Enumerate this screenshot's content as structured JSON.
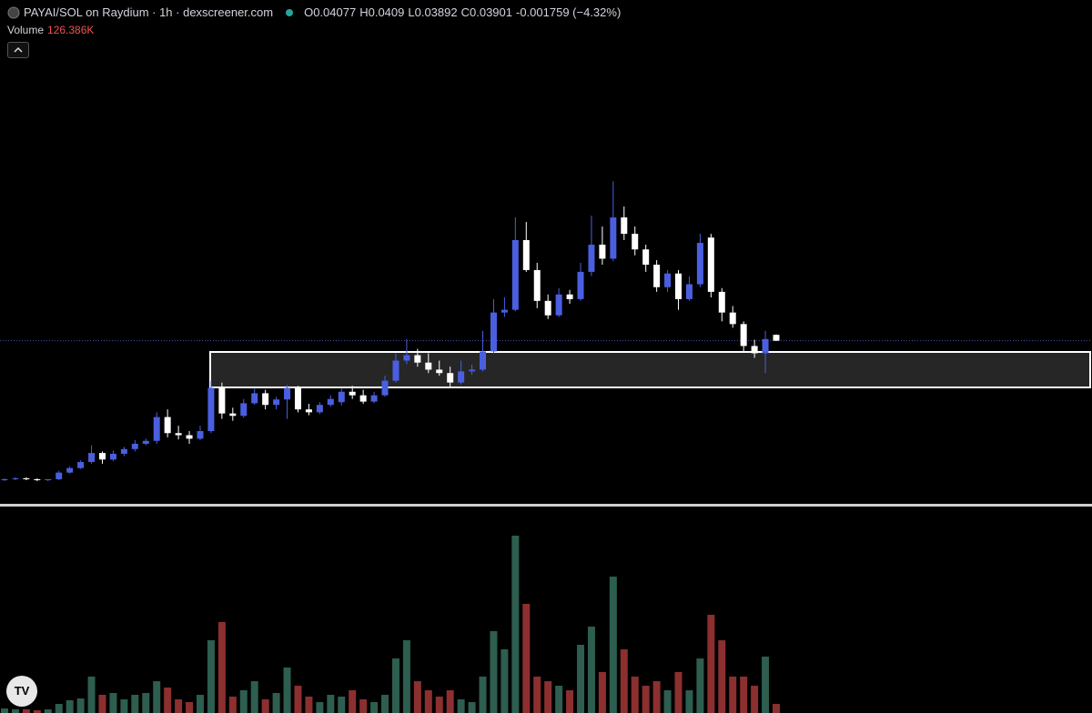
{
  "chart_data": {
    "type": "candlestick",
    "title": "PAYAI/SOL on Raydium · 1h · dexscreener.com",
    "ohlc_labels": [
      "O",
      "H",
      "L",
      "C"
    ],
    "change_label": "-0.001759 (−4.32%)",
    "log_scale": true,
    "ylim": [
      0.01155,
      0.503
    ],
    "up_color": "#4a5fe0",
    "down_color": "#ffffff",
    "open": [
      0.0137,
      0.0138,
      0.0139,
      0.0138,
      0.0137,
      0.0138,
      0.0145,
      0.015,
      0.0157,
      0.0168,
      0.016,
      0.0167,
      0.0173,
      0.018,
      0.0184,
      0.022,
      0.0195,
      0.0192,
      0.0187,
      0.0198,
      0.0274,
      0.0226,
      0.0222,
      0.0244,
      0.0263,
      0.0241,
      0.0251,
      0.0274,
      0.0233,
      0.0228,
      0.0241,
      0.0246,
      0.0266,
      0.0259,
      0.0247,
      0.0259,
      0.0289,
      0.0336,
      0.035,
      0.0331,
      0.0314,
      0.0306,
      0.0285,
      0.031,
      0.0314,
      0.036,
      0.0482,
      0.0492,
      0.083,
      0.0663,
      0.0526,
      0.0472,
      0.0552,
      0.0533,
      0.0654,
      0.0802,
      0.0722,
      0.0984,
      0.087,
      0.0774,
      0.069,
      0.0583,
      0.0646,
      0.0533,
      0.0596,
      0.0846,
      0.0563,
      0.0482,
      0.0442,
      0.0375,
      0.0355,
      0.04077
    ],
    "high": [
      0.0139,
      0.014,
      0.014,
      0.0139,
      0.0138,
      0.0147,
      0.0152,
      0.0159,
      0.0178,
      0.017,
      0.0171,
      0.0176,
      0.0185,
      0.0187,
      0.0228,
      0.0233,
      0.0206,
      0.0198,
      0.0206,
      0.0289,
      0.0285,
      0.0236,
      0.0252,
      0.0274,
      0.027,
      0.0256,
      0.028,
      0.0278,
      0.0243,
      0.0246,
      0.0259,
      0.0274,
      0.0278,
      0.027,
      0.0266,
      0.03,
      0.0355,
      0.0395,
      0.0367,
      0.0355,
      0.0336,
      0.0321,
      0.0336,
      0.0326,
      0.042,
      0.0533,
      0.054,
      0.0984,
      0.0951,
      0.07,
      0.0552,
      0.0579,
      0.0571,
      0.07,
      0.0997,
      0.0919,
      0.1291,
      0.1068,
      0.0919,
      0.0802,
      0.0714,
      0.0663,
      0.0663,
      0.0632,
      0.087,
      0.087,
      0.0579,
      0.0506,
      0.0451,
      0.0393,
      0.042,
      0.0409
    ],
    "low": [
      0.0136,
      0.0137,
      0.0137,
      0.0136,
      0.0136,
      0.0137,
      0.0144,
      0.0149,
      0.0155,
      0.0155,
      0.0158,
      0.0164,
      0.017,
      0.0178,
      0.018,
      0.0189,
      0.0186,
      0.018,
      0.0185,
      0.0195,
      0.0217,
      0.0214,
      0.0219,
      0.0241,
      0.0233,
      0.0233,
      0.0217,
      0.0228,
      0.0223,
      0.0225,
      0.0238,
      0.024,
      0.0252,
      0.0243,
      0.0244,
      0.0256,
      0.0285,
      0.0327,
      0.0321,
      0.0306,
      0.03,
      0.0274,
      0.0281,
      0.0302,
      0.031,
      0.0355,
      0.0466,
      0.0487,
      0.0654,
      0.0498,
      0.0459,
      0.0466,
      0.0515,
      0.0526,
      0.0634,
      0.069,
      0.0709,
      0.083,
      0.074,
      0.0654,
      0.0563,
      0.0563,
      0.0492,
      0.0526,
      0.0583,
      0.054,
      0.0451,
      0.043,
      0.0357,
      0.0343,
      0.0306,
      0.03892
    ],
    "close": [
      0.0138,
      0.0139,
      0.0138,
      0.0137,
      0.0138,
      0.0145,
      0.015,
      0.0157,
      0.0168,
      0.016,
      0.0167,
      0.0173,
      0.018,
      0.0184,
      0.022,
      0.0195,
      0.0192,
      0.0187,
      0.0198,
      0.0274,
      0.0226,
      0.0222,
      0.0244,
      0.0263,
      0.0241,
      0.0251,
      0.0274,
      0.0233,
      0.0228,
      0.0241,
      0.0252,
      0.0266,
      0.0259,
      0.0247,
      0.0259,
      0.0289,
      0.0336,
      0.035,
      0.0331,
      0.0314,
      0.0306,
      0.0285,
      0.031,
      0.0314,
      0.036,
      0.0482,
      0.0492,
      0.083,
      0.0663,
      0.0526,
      0.0472,
      0.0552,
      0.0533,
      0.0654,
      0.0802,
      0.0722,
      0.0984,
      0.087,
      0.0774,
      0.069,
      0.0583,
      0.0646,
      0.0533,
      0.0596,
      0.0813,
      0.0563,
      0.0482,
      0.0442,
      0.0375,
      0.0355,
      0.0395,
      0.03901
    ],
    "volume": {
      "name": "Volume",
      "ylim": [
        0,
        2857000
      ],
      "up_color": "#2d5e50",
      "down_color": "#8c2f2f",
      "values": [
        63000,
        51000,
        51000,
        38000,
        51000,
        126000,
        177000,
        202000,
        506000,
        253000,
        278000,
        190000,
        253000,
        278000,
        442000,
        354000,
        190000,
        152000,
        253000,
        1011000,
        1264000,
        228000,
        316000,
        442000,
        190000,
        278000,
        632000,
        379000,
        228000,
        152000,
        253000,
        228000,
        316000,
        190000,
        152000,
        253000,
        758000,
        1011000,
        442000,
        316000,
        228000,
        316000,
        190000,
        152000,
        506000,
        1138000,
        885000,
        2465000,
        1517000,
        506000,
        442000,
        379000,
        316000,
        948000,
        1201000,
        569000,
        1896000,
        885000,
        506000,
        379000,
        442000,
        316000,
        569000,
        316000,
        758000,
        1365000,
        1011000,
        506000,
        506000,
        379000,
        784000,
        126386
      ],
      "value_labels": [
        null,
        null,
        null,
        null,
        null,
        null,
        null,
        null,
        null,
        null,
        null,
        null,
        null,
        null,
        null,
        null,
        null,
        null,
        null,
        null,
        null,
        null,
        null,
        null,
        null,
        null,
        null,
        null,
        null,
        null,
        null,
        null,
        null,
        null,
        null,
        null,
        null,
        null,
        null,
        null,
        null,
        null,
        null,
        null,
        null,
        null,
        null,
        null,
        null,
        null,
        null,
        null,
        null,
        null,
        null,
        null,
        null,
        null,
        null,
        null,
        null,
        null,
        null,
        null,
        null,
        null,
        null,
        null,
        null,
        null,
        null,
        "126.386K"
      ]
    }
  }
}
